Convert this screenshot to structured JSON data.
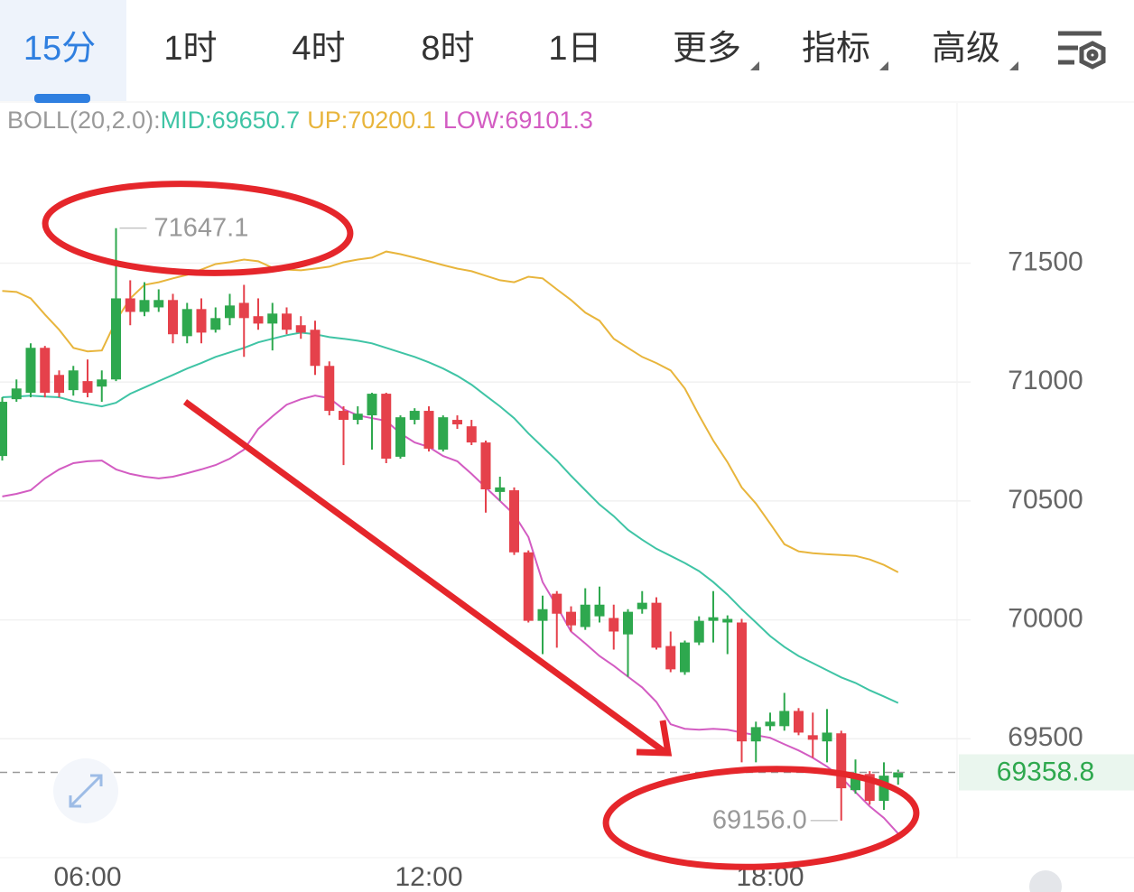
{
  "tabs": [
    {
      "label": "15分",
      "active": true
    },
    {
      "label": "1时"
    },
    {
      "label": "4时"
    },
    {
      "label": "8时"
    },
    {
      "label": "1日"
    },
    {
      "label": "更多",
      "dropdown": true
    },
    {
      "label": "指标",
      "dropdown": true
    },
    {
      "label": "高级",
      "dropdown": true
    }
  ],
  "chart_data": {
    "type": "candlestick",
    "indicator_label": "BOLL(20,2.0):",
    "categories": [
      null,
      null,
      null,
      null,
      null,
      null,
      "06:00",
      null,
      null,
      null,
      null,
      null,
      null,
      null,
      null,
      null,
      null,
      null,
      null,
      null,
      null,
      null,
      null,
      null,
      null,
      null,
      null,
      null,
      null,
      null,
      "12:00",
      null,
      null,
      null,
      null,
      null,
      null,
      null,
      null,
      null,
      null,
      null,
      null,
      null,
      null,
      null,
      null,
      null,
      null,
      null,
      null,
      null,
      null,
      null,
      "18:00",
      null,
      null,
      null,
      null,
      null,
      null,
      null,
      null,
      null
    ],
    "open": [
      70689,
      70928,
      70955,
      71144,
      71030,
      70966,
      71004,
      70981,
      71011,
      71352,
      71295,
      71314,
      71345,
      71193,
      71307,
      71220,
      71269,
      71333,
      71277,
      71246,
      71288,
      71239,
      71220,
      71068,
      70879,
      70841,
      70860,
      70951,
      70686,
      70841,
      70879,
      70716,
      70841,
      70814,
      70746,
      70538,
      70545,
      70284,
      69996,
      70110,
      70034,
      69970,
      70015,
      70008,
      69939,
      70045,
      70072,
      69890,
      69780,
      69905,
      69996,
      69989,
      69989,
      69489,
      69553,
      69553,
      69617,
      69515,
      69489,
      69523,
      69284,
      69352,
      69239,
      69337
    ],
    "high": [
      70936,
      71011,
      71163,
      71152,
      71049,
      71068,
      71095,
      71049,
      71647.1,
      71428,
      71420,
      71390,
      71371,
      71333,
      71352,
      71314,
      71371,
      71409,
      71352,
      71333,
      71314,
      71277,
      71258,
      71087,
      70898,
      70898,
      70955,
      70955,
      70860,
      70890,
      70898,
      70860,
      70860,
      70841,
      70754,
      70602,
      70557,
      70292,
      70102,
      70121,
      70057,
      70133,
      70140,
      70064,
      70045,
      70121,
      70095,
      69951,
      69913,
      70015,
      70121,
      70019,
      70004,
      69572,
      69610,
      69693,
      69629,
      69610,
      69625,
      69534,
      69413,
      69364,
      69401,
      69370
    ],
    "low": [
      70670,
      70917,
      70936,
      70936,
      70936,
      70943,
      70936,
      70917,
      71004,
      71239,
      71277,
      71295,
      71163,
      71163,
      71163,
      71208,
      71239,
      71106,
      71220,
      71133,
      71201,
      71182,
      71030,
      70860,
      70651,
      70822,
      70716,
      70659,
      70678,
      70822,
      70708,
      70708,
      70803,
      70735,
      70451,
      70500,
      70273,
      69989,
      69856,
      69883,
      69951,
      69958,
      69989,
      69875,
      69761,
      70026,
      69875,
      69780,
      69769,
      69894,
      69905,
      69856,
      69401,
      69401,
      69534,
      69534,
      69515,
      69420,
      69401,
      69156,
      69269,
      69223,
      69201,
      69307
    ],
    "close": [
      70917,
      70973,
      71144,
      70955,
      70955,
      71049,
      70955,
      71011,
      71352,
      71295,
      71345,
      71345,
      71201,
      71307,
      71208,
      71269,
      71322,
      71269,
      71246,
      71288,
      71220,
      71208,
      71068,
      70879,
      70841,
      70867,
      70951,
      70678,
      70852,
      70879,
      70720,
      70852,
      70822,
      70746,
      70549,
      70557,
      70284,
      69996,
      70045,
      70026,
      69977,
      70064,
      70064,
      69951,
      70034,
      70072,
      69883,
      69792,
      69905,
      69996,
      70011,
      70004,
      69489,
      69549,
      69572,
      69617,
      69526,
      69496,
      69526,
      69292,
      69352,
      69239,
      69345,
      69358.8
    ],
    "up_color": "#2ea84e",
    "down_color": "#e5414b",
    "series": [
      {
        "name": "MID:",
        "color": "#3fc4a5",
        "values": [
          70936,
          70939,
          70943,
          70939,
          70936,
          70920,
          70909,
          70898,
          70913,
          70951,
          70977,
          71004,
          71030,
          71057,
          71080,
          71106,
          71125,
          71144,
          71167,
          71182,
          71197,
          71208,
          71201,
          71189,
          71182,
          71174,
          71163,
          71144,
          71125,
          71106,
          71083,
          71057,
          71026,
          70989,
          70943,
          70898,
          70848,
          70784,
          70727,
          70670,
          70606,
          70545,
          70485,
          70436,
          70379,
          70337,
          70299,
          70269,
          70239,
          70205,
          70159,
          70106,
          70045,
          69989,
          69932,
          69886,
          69848,
          69818,
          69788,
          69758,
          69735,
          69704,
          69678,
          69650.7
        ]
      },
      {
        "name": "UP:",
        "color": "#e8b53c",
        "values": [
          71383,
          71379,
          71352,
          71284,
          71220,
          71144,
          71129,
          71133,
          71258,
          71352,
          71409,
          71420,
          71436,
          71451,
          71473,
          71496,
          71504,
          71515,
          71508,
          71481,
          71473,
          71470,
          71477,
          71485,
          71504,
          71515,
          71523,
          71549,
          71538,
          71523,
          71508,
          71492,
          71477,
          71466,
          71447,
          71428,
          71420,
          71443,
          71436,
          71390,
          71345,
          71292,
          71258,
          71182,
          71144,
          71106,
          71080,
          71049,
          70973,
          70860,
          70754,
          70663,
          70557,
          70489,
          70405,
          70318,
          70288,
          70280,
          70276,
          70273,
          70269,
          70254,
          70231,
          70200.1
        ]
      },
      {
        "name": "LOW:",
        "color": "#d35cc2",
        "values": [
          70519,
          70530,
          70545,
          70595,
          70633,
          70659,
          70667,
          70670,
          70633,
          70614,
          70602,
          70595,
          70602,
          70617,
          70633,
          70651,
          70678,
          70716,
          70803,
          70856,
          70905,
          70928,
          70943,
          70932,
          70886,
          70860,
          70848,
          70837,
          70784,
          70746,
          70727,
          70689,
          70667,
          70614,
          70557,
          70500,
          70443,
          70348,
          70159,
          70057,
          69951,
          69901,
          69848,
          69807,
          69761,
          69716,
          69655,
          69561,
          69542,
          69538,
          69542,
          69538,
          69526,
          69515,
          69504,
          69477,
          69451,
          69420,
          69383,
          69337,
          69276,
          69216,
          69167,
          69101.3
        ]
      }
    ],
    "max_label": "71647.1",
    "min_label": "69156.0",
    "ylim": [
      69000,
      72170
    ],
    "yticks": [
      69500,
      70000,
      70500,
      71000,
      71500
    ],
    "grid": true,
    "price_line": true
  }
}
